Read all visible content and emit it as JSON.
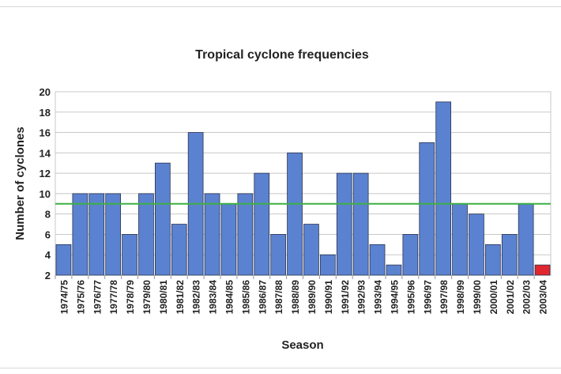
{
  "chart_data": {
    "type": "bar",
    "title": "Tropical cyclone frequencies",
    "xlabel": "Season",
    "ylabel": "Number of cyclones",
    "ylim": [
      2,
      20
    ],
    "yticks": [
      2,
      4,
      6,
      8,
      10,
      12,
      14,
      16,
      18,
      20
    ],
    "grid": true,
    "categories": [
      "1974/75",
      "1975/76",
      "1976/77",
      "1977/78",
      "1978/79",
      "1979/80",
      "1980/81",
      "1981/82",
      "1982/83",
      "1983/84",
      "1984/85",
      "1985/86",
      "1986/87",
      "1987/88",
      "1988/89",
      "1989/90",
      "1990/91",
      "1991/92",
      "1992/93",
      "1993/94",
      "1994/95",
      "1995/96",
      "1996/97",
      "1997/98",
      "1998/99",
      "1999/00",
      "2000/01",
      "2001/02",
      "2002/03",
      "2003/04"
    ],
    "values": [
      5,
      10,
      10,
      10,
      6,
      10,
      13,
      7,
      16,
      10,
      9,
      10,
      12,
      6,
      14,
      7,
      4,
      12,
      12,
      5,
      3,
      6,
      15,
      19,
      9,
      8,
      5,
      6,
      9,
      3
    ],
    "highlight_index": 29,
    "reference_line": {
      "value": 9,
      "color": "#3cb043"
    },
    "colors": {
      "bar": "#5b82d0",
      "highlight": "#e0262e",
      "grid": "#c8c8c8"
    }
  }
}
